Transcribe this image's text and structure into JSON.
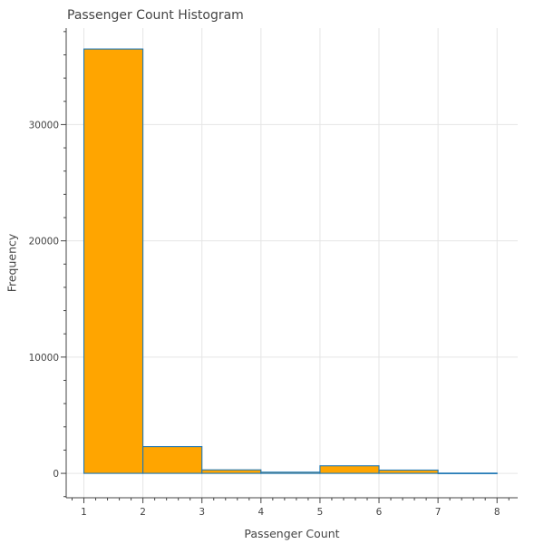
{
  "chart_data": {
    "type": "bar",
    "title": "Passenger Count Histogram",
    "xlabel": "Passenger Count",
    "ylabel": "Frequency",
    "bins": [
      {
        "start": 1,
        "end": 2,
        "value": 36500
      },
      {
        "start": 2,
        "end": 3,
        "value": 2300
      },
      {
        "start": 3,
        "end": 4,
        "value": 300
      },
      {
        "start": 4,
        "end": 5,
        "value": 100
      },
      {
        "start": 5,
        "end": 6,
        "value": 650
      },
      {
        "start": 6,
        "end": 7,
        "value": 280
      },
      {
        "start": 7,
        "end": 8,
        "value": 20
      }
    ],
    "xlim": [
      0.7,
      8.35
    ],
    "ylim": [
      -2100,
      38300
    ],
    "xticks": [
      "1",
      "2",
      "3",
      "4",
      "5",
      "6",
      "7",
      "8"
    ],
    "yticks": [
      "0",
      "10000",
      "20000",
      "30000"
    ],
    "grid": true,
    "bar_color": "#FFA500",
    "bar_edge_color": "#1f77b4"
  }
}
